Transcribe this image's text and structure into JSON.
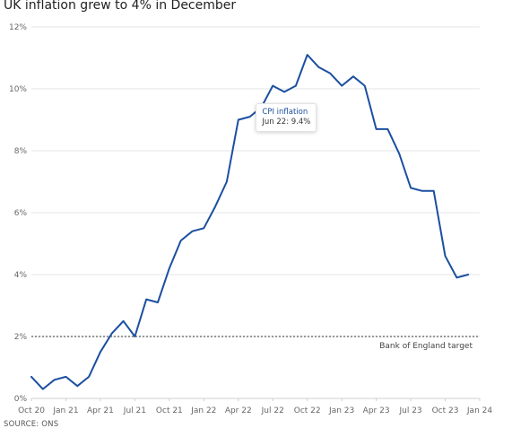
{
  "title": "UK inflation grew to 4% in December",
  "source": "SOURCE: ONS",
  "tooltip": {
    "series": "CPI inflation",
    "text": "Jun 22: 9.4%"
  },
  "colors": {
    "line": "#1b4fa0",
    "grid": "#e6e6e6",
    "target": "#333333"
  },
  "chart_data": {
    "type": "line",
    "title": "UK inflation grew to 4% in December",
    "x_tick_labels": [
      "Oct 20",
      "Jan 21",
      "Apr 21",
      "Jul 21",
      "Oct 21",
      "Jan 22",
      "Apr 22",
      "Jul 22",
      "Oct 22",
      "Jan 23",
      "Apr 23",
      "Jul 23",
      "Oct 23",
      "Jan 24"
    ],
    "y_tick_labels": [
      "0%",
      "2%",
      "4%",
      "6%",
      "8%",
      "10%",
      "12%"
    ],
    "y_ticks": [
      0,
      2,
      4,
      6,
      8,
      10,
      12
    ],
    "ylim": [
      0,
      12
    ],
    "x_range": [
      "2020-10",
      "2024-01"
    ],
    "grid": true,
    "series": [
      {
        "name": "CPI inflation",
        "x": [
          "2020-10",
          "2020-11",
          "2020-12",
          "2021-01",
          "2021-02",
          "2021-03",
          "2021-04",
          "2021-05",
          "2021-06",
          "2021-07",
          "2021-08",
          "2021-09",
          "2021-10",
          "2021-11",
          "2021-12",
          "2022-01",
          "2022-02",
          "2022-03",
          "2022-04",
          "2022-05",
          "2022-06",
          "2022-07",
          "2022-08",
          "2022-09",
          "2022-10",
          "2022-11",
          "2022-12",
          "2023-01",
          "2023-02",
          "2023-03",
          "2023-04",
          "2023-05",
          "2023-06",
          "2023-07",
          "2023-08",
          "2023-09",
          "2023-10",
          "2023-11",
          "2023-12"
        ],
        "values": [
          0.7,
          0.3,
          0.6,
          0.7,
          0.4,
          0.7,
          1.5,
          2.1,
          2.5,
          2.0,
          3.2,
          3.1,
          4.2,
          5.1,
          5.4,
          5.5,
          6.2,
          7.0,
          9.0,
          9.1,
          9.4,
          10.1,
          9.9,
          10.1,
          11.1,
          10.7,
          10.5,
          10.1,
          10.4,
          10.1,
          8.7,
          8.7,
          7.9,
          6.8,
          6.7,
          6.7,
          4.6,
          3.9,
          4.0
        ]
      }
    ],
    "reference_line": {
      "value": 2,
      "label": "Bank of England target",
      "style": "dashed"
    },
    "highlight": {
      "x": "2022-06",
      "value": 9.4
    }
  }
}
